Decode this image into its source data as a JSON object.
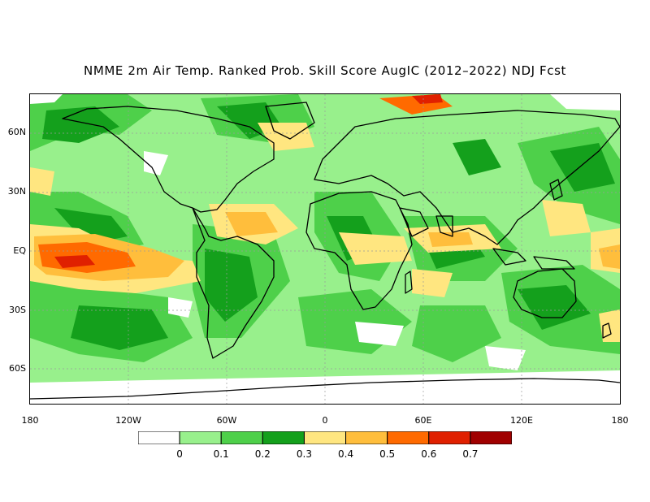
{
  "title": "NMME 2m Air Temp. Ranked Prob. Skill Score AugIC (2012–2022) NDJ Fcst",
  "lat_labels": [
    "60N",
    "30N",
    "EQ",
    "30S",
    "60S"
  ],
  "lon_labels": [
    "180",
    "120W",
    "60W",
    "0",
    "60E",
    "120E",
    "180"
  ],
  "colorbar": {
    "colors": [
      "#ffffff",
      "#98f08c",
      "#4ed04a",
      "#14a01c",
      "#ffe680",
      "#ffbe3c",
      "#ff6a00",
      "#e02000",
      "#a00000"
    ],
    "labels": [
      "0",
      "0.1",
      "0.2",
      "0.3",
      "0.4",
      "0.5",
      "0.6",
      "0.7"
    ]
  }
}
